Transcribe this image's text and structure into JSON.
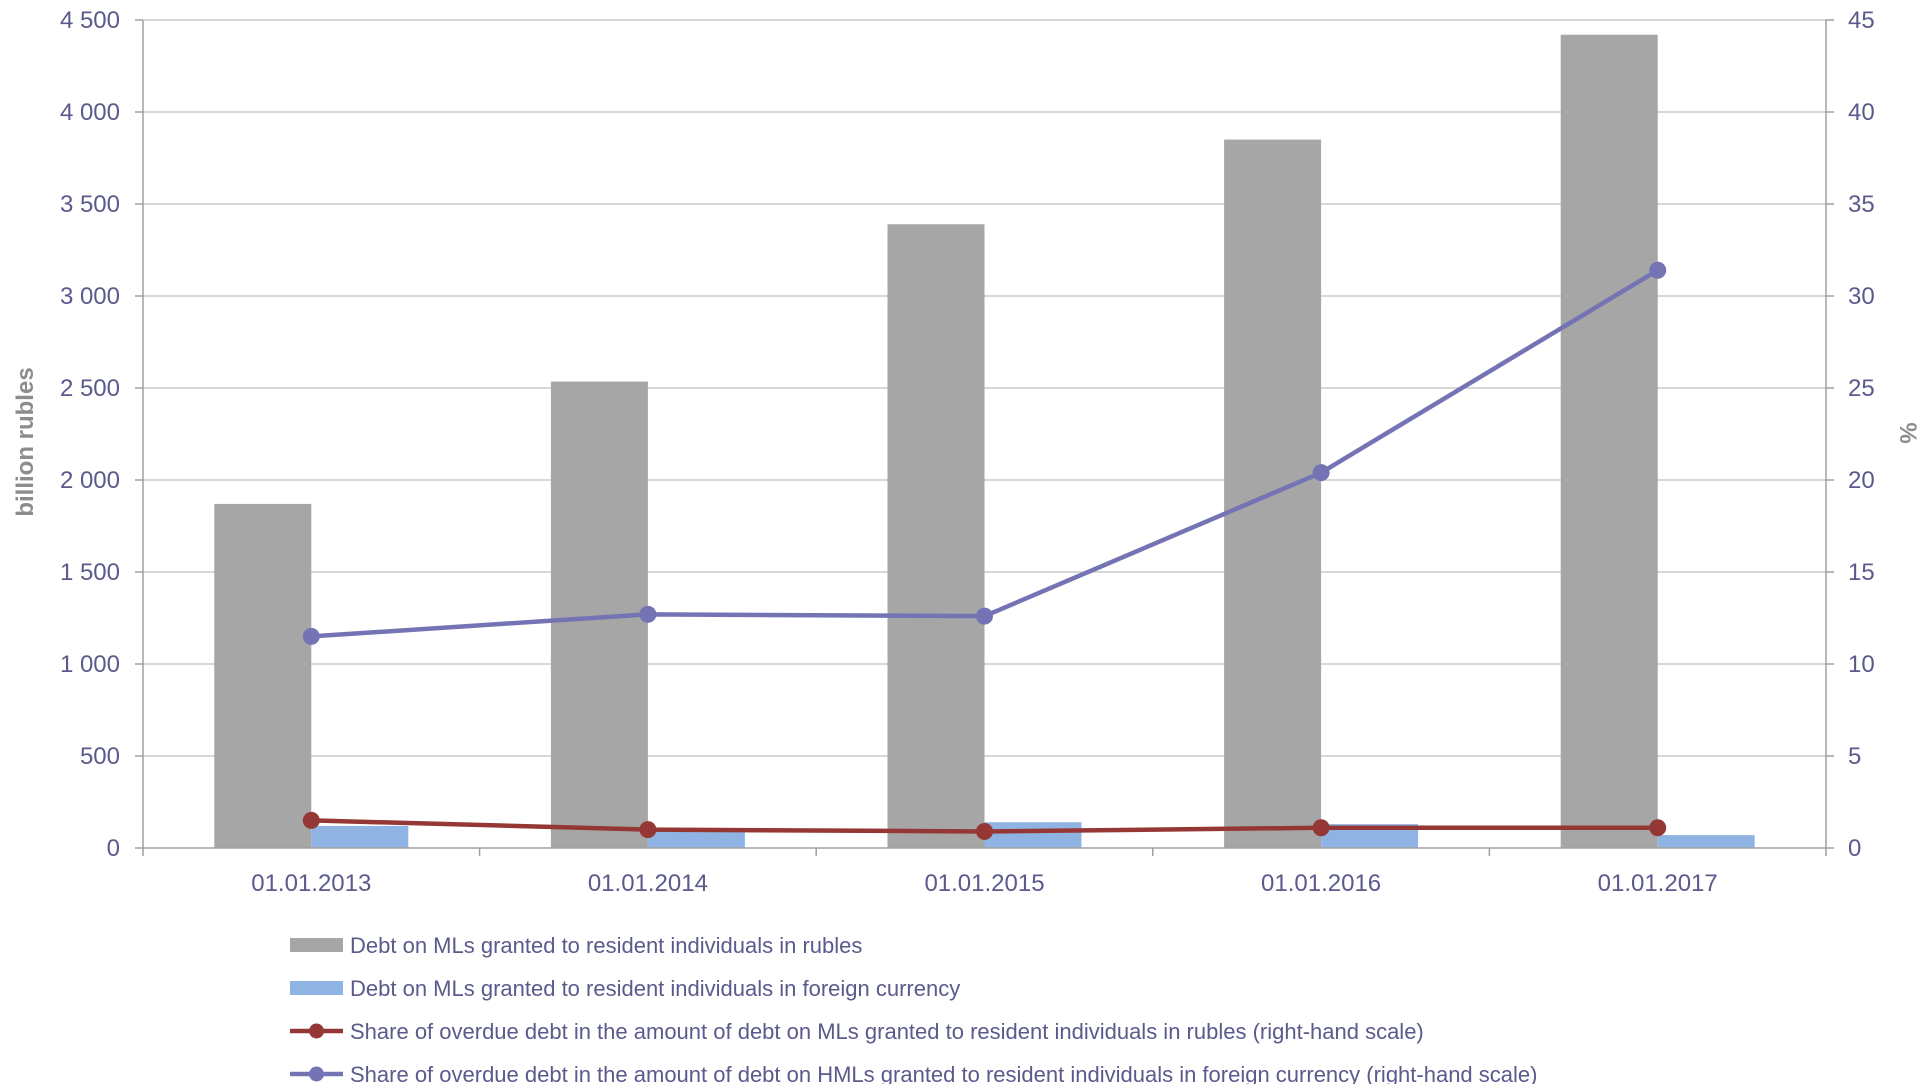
{
  "chart_data": {
    "type": "bar",
    "categories": [
      "01.01.2013",
      "01.01.2014",
      "01.01.2015",
      "01.01.2016",
      "01.01.2017"
    ],
    "y_left": {
      "label": "billion rubles",
      "ylim": [
        0,
        4500
      ],
      "ticks": [
        0,
        500,
        1000,
        1500,
        2000,
        2500,
        3000,
        3500,
        4000,
        4500
      ],
      "tick_labels": [
        "0",
        "500",
        "1 000",
        "1 500",
        "2 000",
        "2 500",
        "3 000",
        "3 500",
        "4 000",
        "4 500"
      ]
    },
    "y_right": {
      "label": "%",
      "ylim": [
        0,
        45
      ],
      "ticks": [
        0,
        5,
        10,
        15,
        20,
        25,
        30,
        35,
        40,
        45
      ],
      "tick_labels": [
        "0",
        "5",
        "10",
        "15",
        "20",
        "25",
        "30",
        "35",
        "40",
        "45"
      ]
    },
    "series": [
      {
        "name": "Debt on MLs granted to resident individuals in rubles",
        "kind": "bar",
        "axis": "left",
        "color": "#a6a6a6",
        "values": [
          1870,
          2535,
          3390,
          3850,
          4420
        ]
      },
      {
        "name": "Debt on MLs granted to resident individuals in foreign currency",
        "kind": "bar",
        "axis": "left",
        "color": "#8fb4e3",
        "values": [
          120,
          100,
          140,
          130,
          70
        ]
      },
      {
        "name": "Share of overdue debt in the amount of debt on MLs granted to resident individuals in rubles (right-hand scale)",
        "kind": "line",
        "axis": "right",
        "color": "#953735",
        "values": [
          1.5,
          1.0,
          0.9,
          1.1,
          1.1
        ]
      },
      {
        "name": "Share of overdue debt in the amount of debt on HMLs granted to resident individuals in foreign currency (right-hand scale)",
        "kind": "line",
        "axis": "right",
        "color": "#7474b4",
        "values": [
          11.5,
          12.7,
          12.6,
          20.4,
          31.4
        ]
      }
    ],
    "grid": "horizontal",
    "legend_position": "bottom"
  },
  "colors": {
    "axis_text": "#5a5a8c",
    "axis_title": "#8c8c8c",
    "grid": "#bfbfbf",
    "axis_line": "#a0a0a0"
  }
}
